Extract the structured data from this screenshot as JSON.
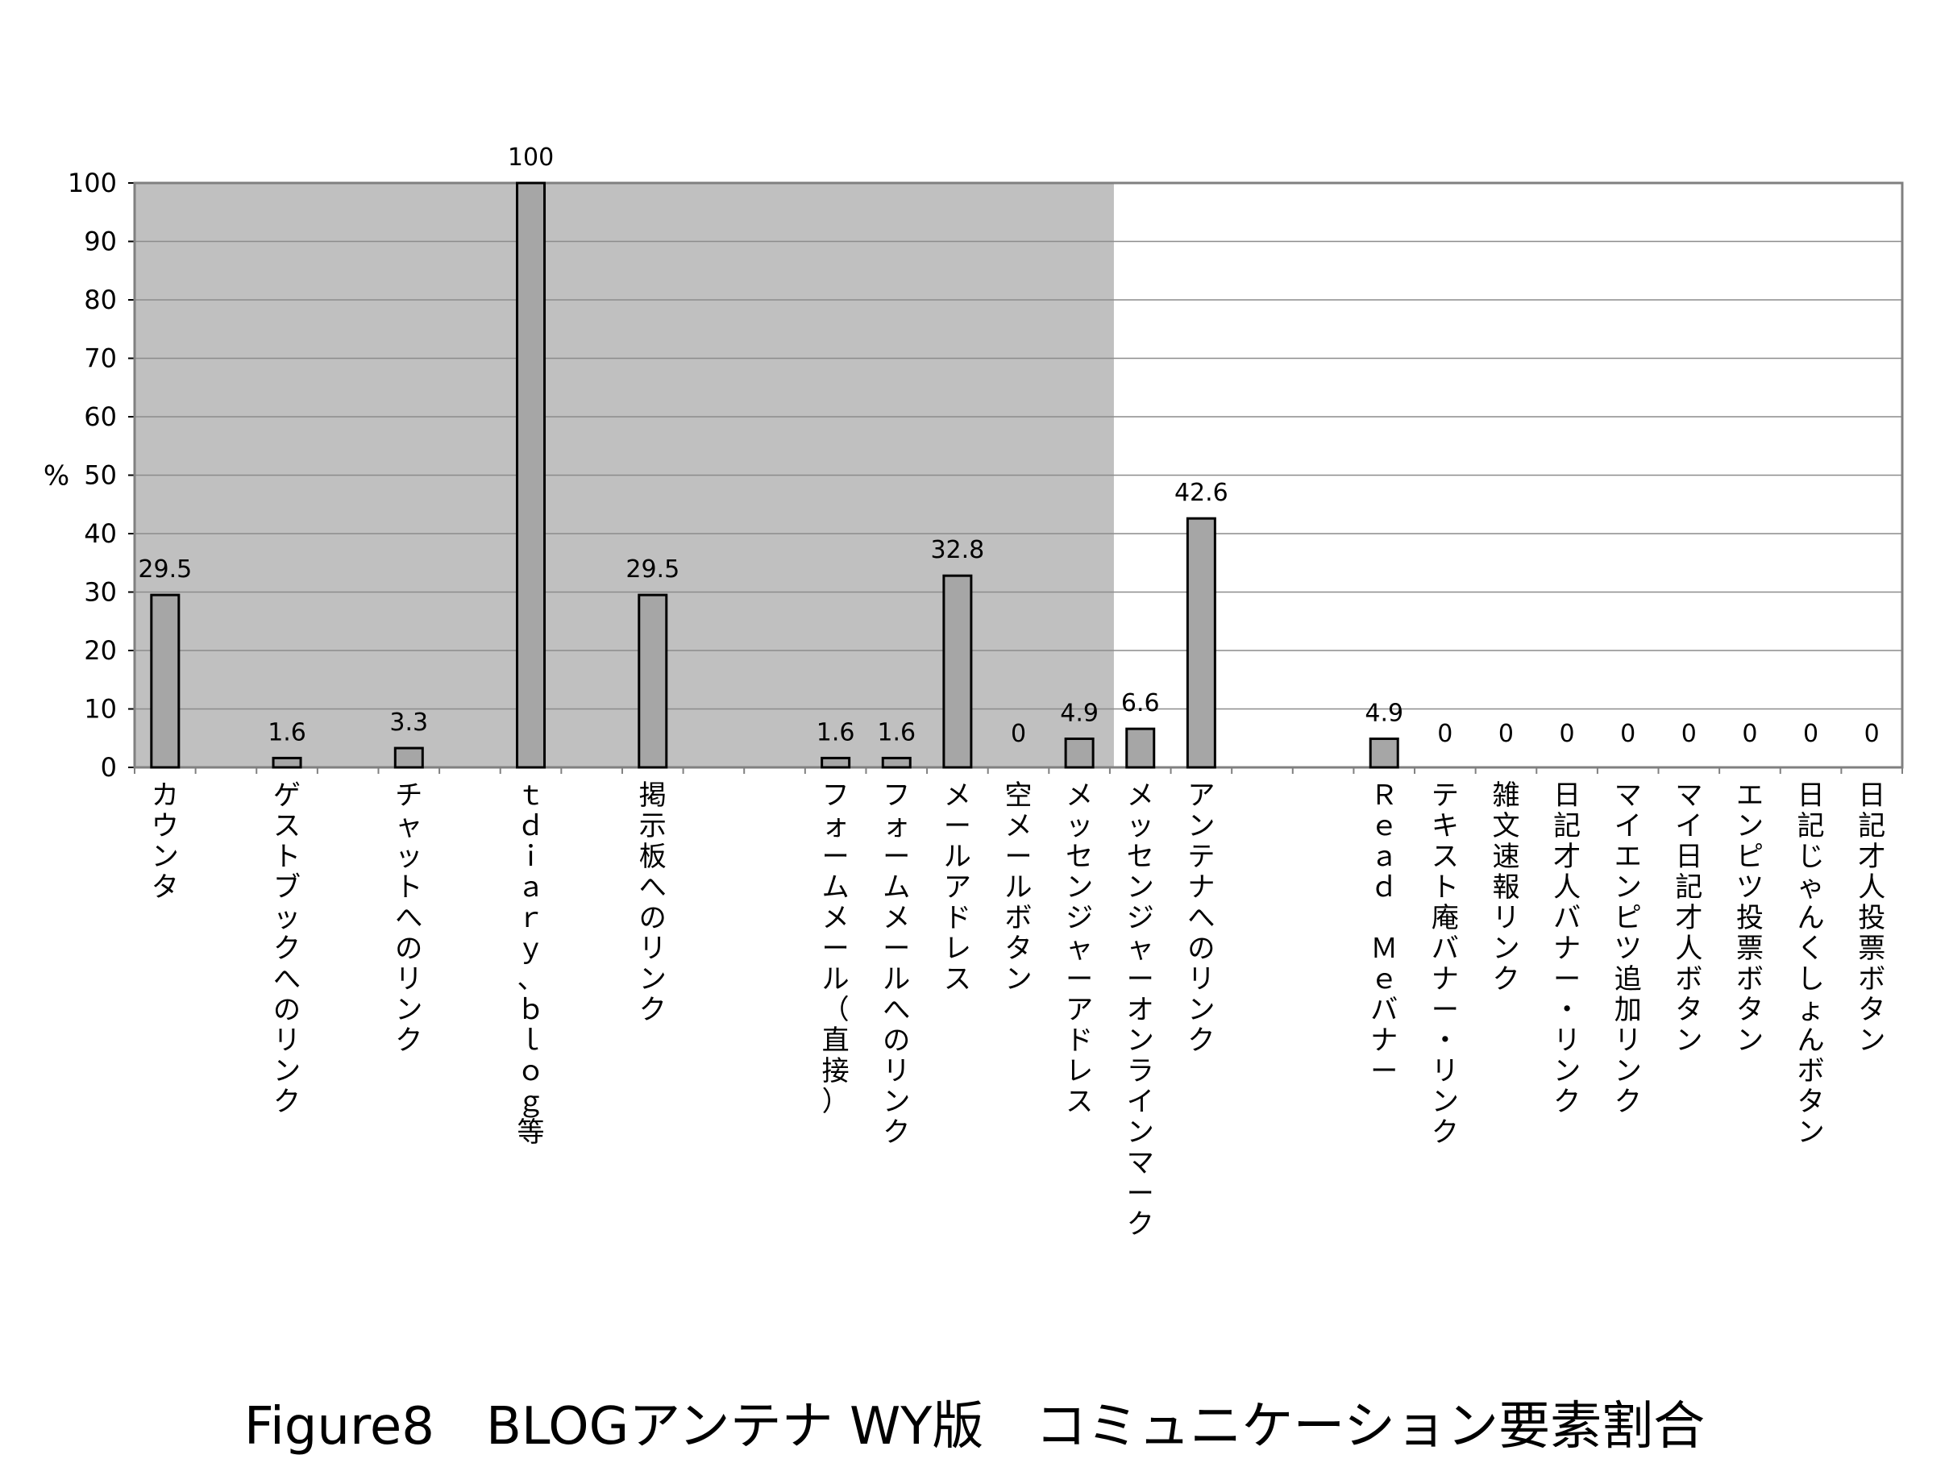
{
  "figure_title": "Figure8　BLOGアンテナ WY版　コミュニケーション要素割合",
  "chart_data": {
    "type": "bar",
    "ylabel": "%",
    "ylim": [
      0,
      100
    ],
    "yticks": [
      0,
      10,
      20,
      30,
      40,
      50,
      60,
      70,
      80,
      90,
      100
    ],
    "grid": true,
    "shaded_region": {
      "from_category": 0,
      "to_category": 15,
      "color": "#c0c0c0"
    },
    "bar_color": "#a6a6a6",
    "categories": [
      "カウンタ",
      "",
      "ゲストブックへのリンク",
      "",
      "チャットへのリンク",
      "",
      "ｔｄｉａｒｙ、ｂｌｏｇ等",
      "",
      "掲示板へのリンク",
      "",
      "",
      "フォームメール（直接）",
      "フォームメールへのリンク",
      "メールアドレス",
      "空メールボタン",
      "メッセンジャーアドレス",
      "メッセンジャーオンラインマーク",
      "アンテナへのリンク",
      "",
      "",
      "Ｒｅａｄ Ｍｅバナー",
      "テキスト庵バナー・リンク",
      "雑文速報リンク",
      "日記才人バナー・リンク",
      "マイエンピツ追加リンク",
      "マイ日記才人ボタン",
      "エンピツ投票ボタン",
      "日記じゃんくしょんボタン",
      "日記才人投票ボタン"
    ],
    "values": [
      29.5,
      null,
      1.6,
      null,
      3.3,
      null,
      100,
      null,
      29.5,
      null,
      null,
      1.6,
      1.6,
      32.8,
      0,
      4.9,
      6.6,
      42.6,
      null,
      null,
      4.9,
      0,
      0,
      0,
      0,
      0,
      0,
      0,
      0
    ],
    "data_labels": [
      "29.5",
      "",
      "1.6",
      "",
      "3.3",
      "",
      "100",
      "",
      "29.5",
      "",
      "",
      "1.6",
      "1.6",
      "32.8",
      "0",
      "4.9",
      "6.6",
      "42.6",
      "",
      "",
      "4.9",
      "0",
      "0",
      "0",
      "0",
      "0",
      "0",
      "0",
      "0"
    ]
  }
}
